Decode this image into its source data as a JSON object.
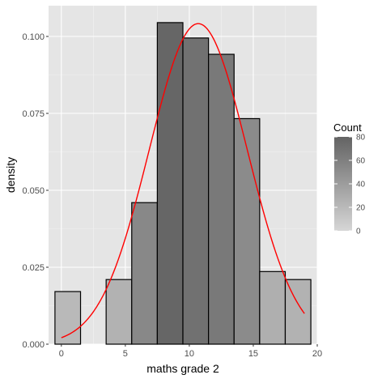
{
  "chart_data": {
    "type": "bar",
    "subtype": "histogram-with-density-curve",
    "title": "",
    "xlabel": "maths grade 2",
    "ylabel": "density",
    "xlim": [
      -1,
      20
    ],
    "ylim": [
      0,
      0.11
    ],
    "x_ticks": [
      0,
      5,
      10,
      15,
      20
    ],
    "y_ticks": [
      0.0,
      0.025,
      0.05,
      0.075,
      0.1
    ],
    "x_tick_labels": [
      "0",
      "5",
      "10",
      "15",
      "20"
    ],
    "y_tick_labels": [
      "0.000",
      "0.025",
      "0.050",
      "0.075",
      "0.100"
    ],
    "grid": true,
    "bins": [
      {
        "x0": -0.5,
        "x1": 1.5,
        "density": 0.0171,
        "count": 20
      },
      {
        "x0": 1.5,
        "x1": 3.5,
        "density": 0.0,
        "count": 0
      },
      {
        "x0": 3.5,
        "x1": 5.5,
        "density": 0.021,
        "count": 25
      },
      {
        "x0": 5.5,
        "x1": 7.5,
        "density": 0.046,
        "count": 54
      },
      {
        "x0": 7.5,
        "x1": 9.5,
        "density": 0.1045,
        "count": 78
      },
      {
        "x0": 9.5,
        "x1": 11.5,
        "density": 0.0995,
        "count": 70
      },
      {
        "x0": 11.5,
        "x1": 13.5,
        "density": 0.0942,
        "count": 65
      },
      {
        "x0": 13.5,
        "x1": 15.5,
        "density": 0.0733,
        "count": 52
      },
      {
        "x0": 15.5,
        "x1": 17.5,
        "density": 0.0236,
        "count": 27
      },
      {
        "x0": 17.5,
        "x1": 19.5,
        "density": 0.021,
        "count": 25
      }
    ],
    "density_curve": {
      "type": "normal",
      "mean": 10.7,
      "sd": 3.83,
      "x_range": [
        0,
        19
      ],
      "color": "#ff0000"
    },
    "legend": {
      "title": "Count",
      "position": "right",
      "min": 0,
      "max": 80,
      "breaks": [
        0,
        20,
        40,
        60,
        80
      ],
      "break_labels": [
        "0",
        "20",
        "40",
        "60",
        "80"
      ],
      "low_color": "#d6d6d6",
      "high_color": "#636363"
    },
    "colors": {
      "panel_background": "#e5e5e5",
      "grid_major": "#ffffff",
      "bar_outline": "#000000",
      "tick_text": "#4d4d4d"
    }
  }
}
